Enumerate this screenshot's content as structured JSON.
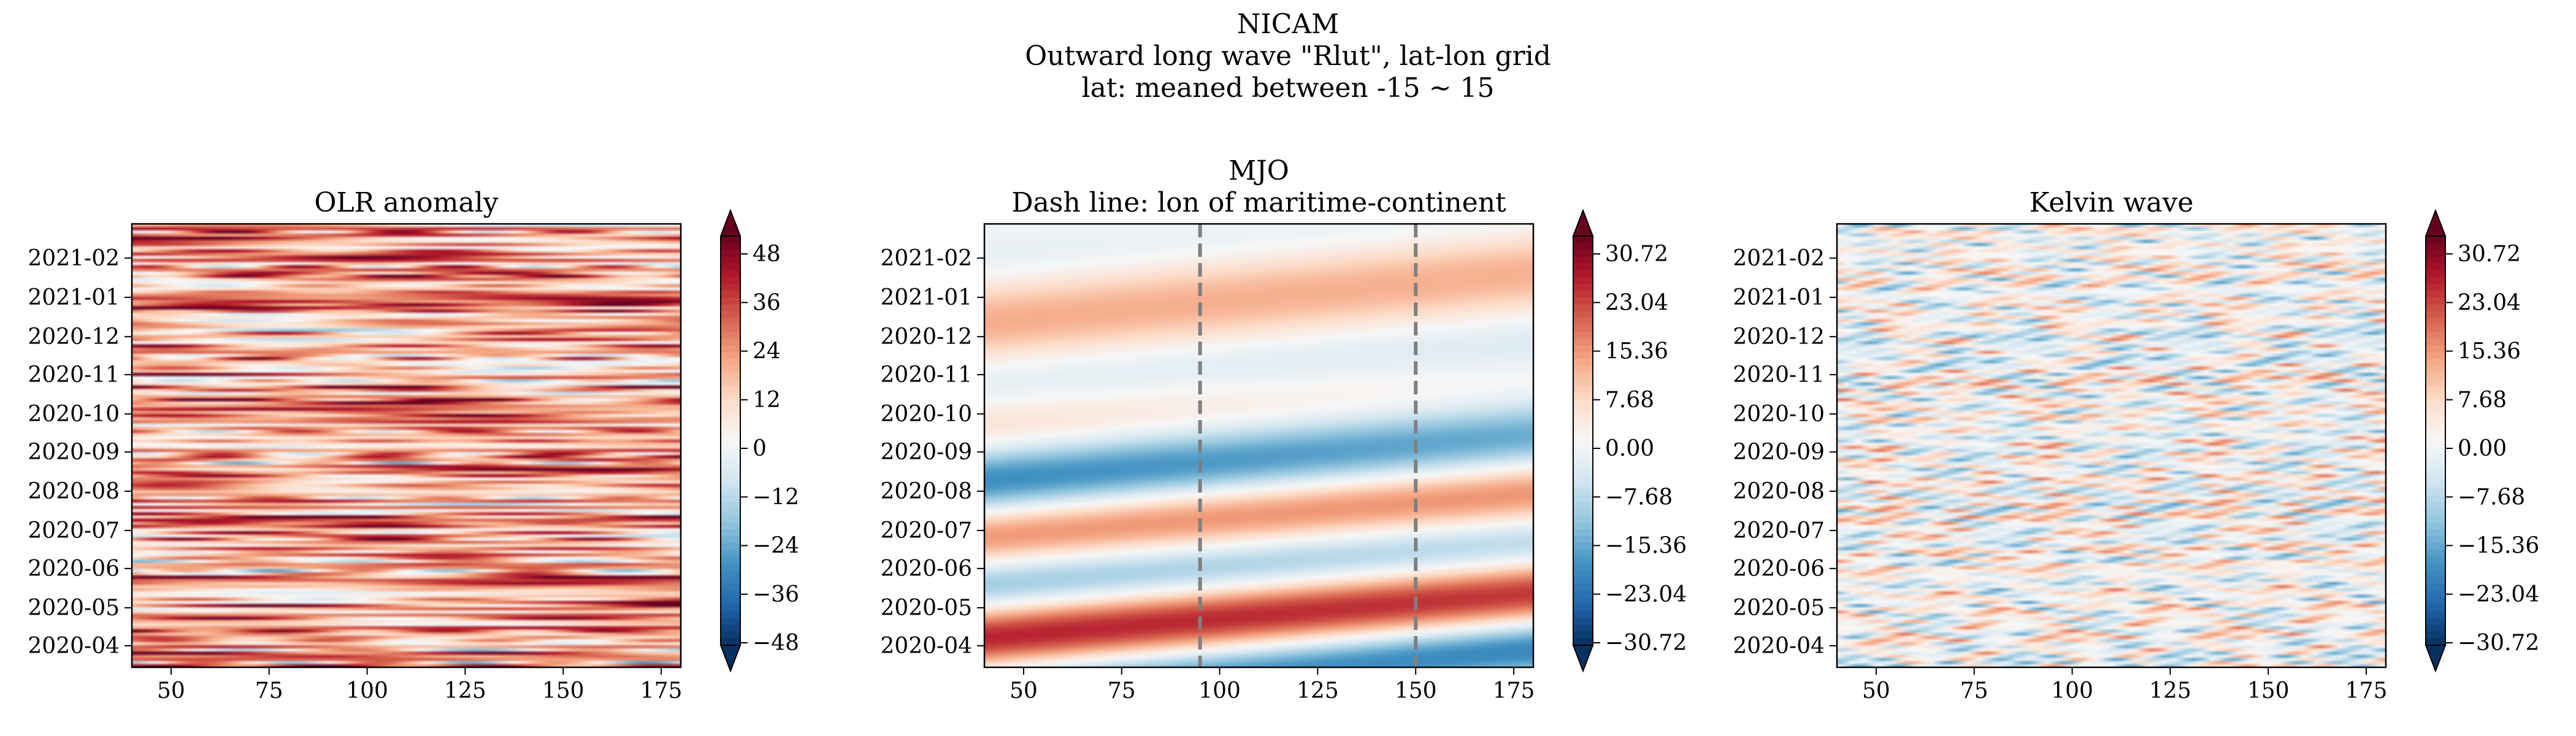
{
  "figure": {
    "suptitle_lines": [
      "NICAM",
      "Outward long wave \"Rlut\", lat-lon grid",
      "lat: meaned between -15 ~ 15"
    ]
  },
  "chart_data": [
    {
      "type": "heatmap",
      "title": "OLR anomaly",
      "xlabel": "",
      "ylabel": "",
      "x_ticks": [
        50,
        75,
        100,
        125,
        150,
        175
      ],
      "xlim": [
        40,
        180
      ],
      "y_ticks": [
        "2021-02",
        "2021-01",
        "2020-12",
        "2020-11",
        "2020-10",
        "2020-09",
        "2020-08",
        "2020-07",
        "2020-06",
        "2020-05",
        "2020-04"
      ],
      "ylim": [
        "2020-03-15",
        "2021-02-28"
      ],
      "colormap": "RdBu_r",
      "colorbar_ticks": [
        "48",
        "36",
        "24",
        "12",
        "0",
        "−12",
        "−24",
        "−36",
        "−48"
      ],
      "clim": [
        -48,
        48
      ],
      "pattern": "noisy streaks"
    },
    {
      "type": "heatmap",
      "title_lines": [
        "MJO",
        "Dash line: lon of maritime-continent"
      ],
      "xlabel": "",
      "ylabel": "",
      "x_ticks": [
        50,
        75,
        100,
        125,
        150,
        175
      ],
      "xlim": [
        40,
        180
      ],
      "y_ticks": [
        "2021-02",
        "2021-01",
        "2020-12",
        "2020-11",
        "2020-10",
        "2020-09",
        "2020-08",
        "2020-07",
        "2020-06",
        "2020-05",
        "2020-04"
      ],
      "ylim": [
        "2020-03-15",
        "2021-02-28"
      ],
      "colormap": "RdBu_r",
      "colorbar_ticks": [
        "30.72",
        "23.04",
        "15.36",
        "7.68",
        "0.00",
        "−7.68",
        "−15.36",
        "−23.04",
        "−30.72"
      ],
      "clim": [
        -30.72,
        30.72
      ],
      "dashed_lines_lon": [
        95,
        150
      ],
      "pattern": "smooth eastward-tilted bands"
    },
    {
      "type": "heatmap",
      "title": "Kelvin wave",
      "xlabel": "",
      "ylabel": "",
      "x_ticks": [
        50,
        75,
        100,
        125,
        150,
        175
      ],
      "xlim": [
        40,
        180
      ],
      "y_ticks": [
        "2021-02",
        "2021-01",
        "2020-12",
        "2020-11",
        "2020-10",
        "2020-09",
        "2020-08",
        "2020-07",
        "2020-06",
        "2020-05",
        "2020-04"
      ],
      "ylim": [
        "2020-03-15",
        "2021-02-28"
      ],
      "colormap": "RdBu_r",
      "colorbar_ticks": [
        "30.72",
        "23.04",
        "15.36",
        "7.68",
        "0.00",
        "−7.68",
        "−15.36",
        "−23.04",
        "−30.72"
      ],
      "clim": [
        -30.72,
        30.72
      ],
      "pattern": "thin fast eastward-tilted lines"
    }
  ]
}
